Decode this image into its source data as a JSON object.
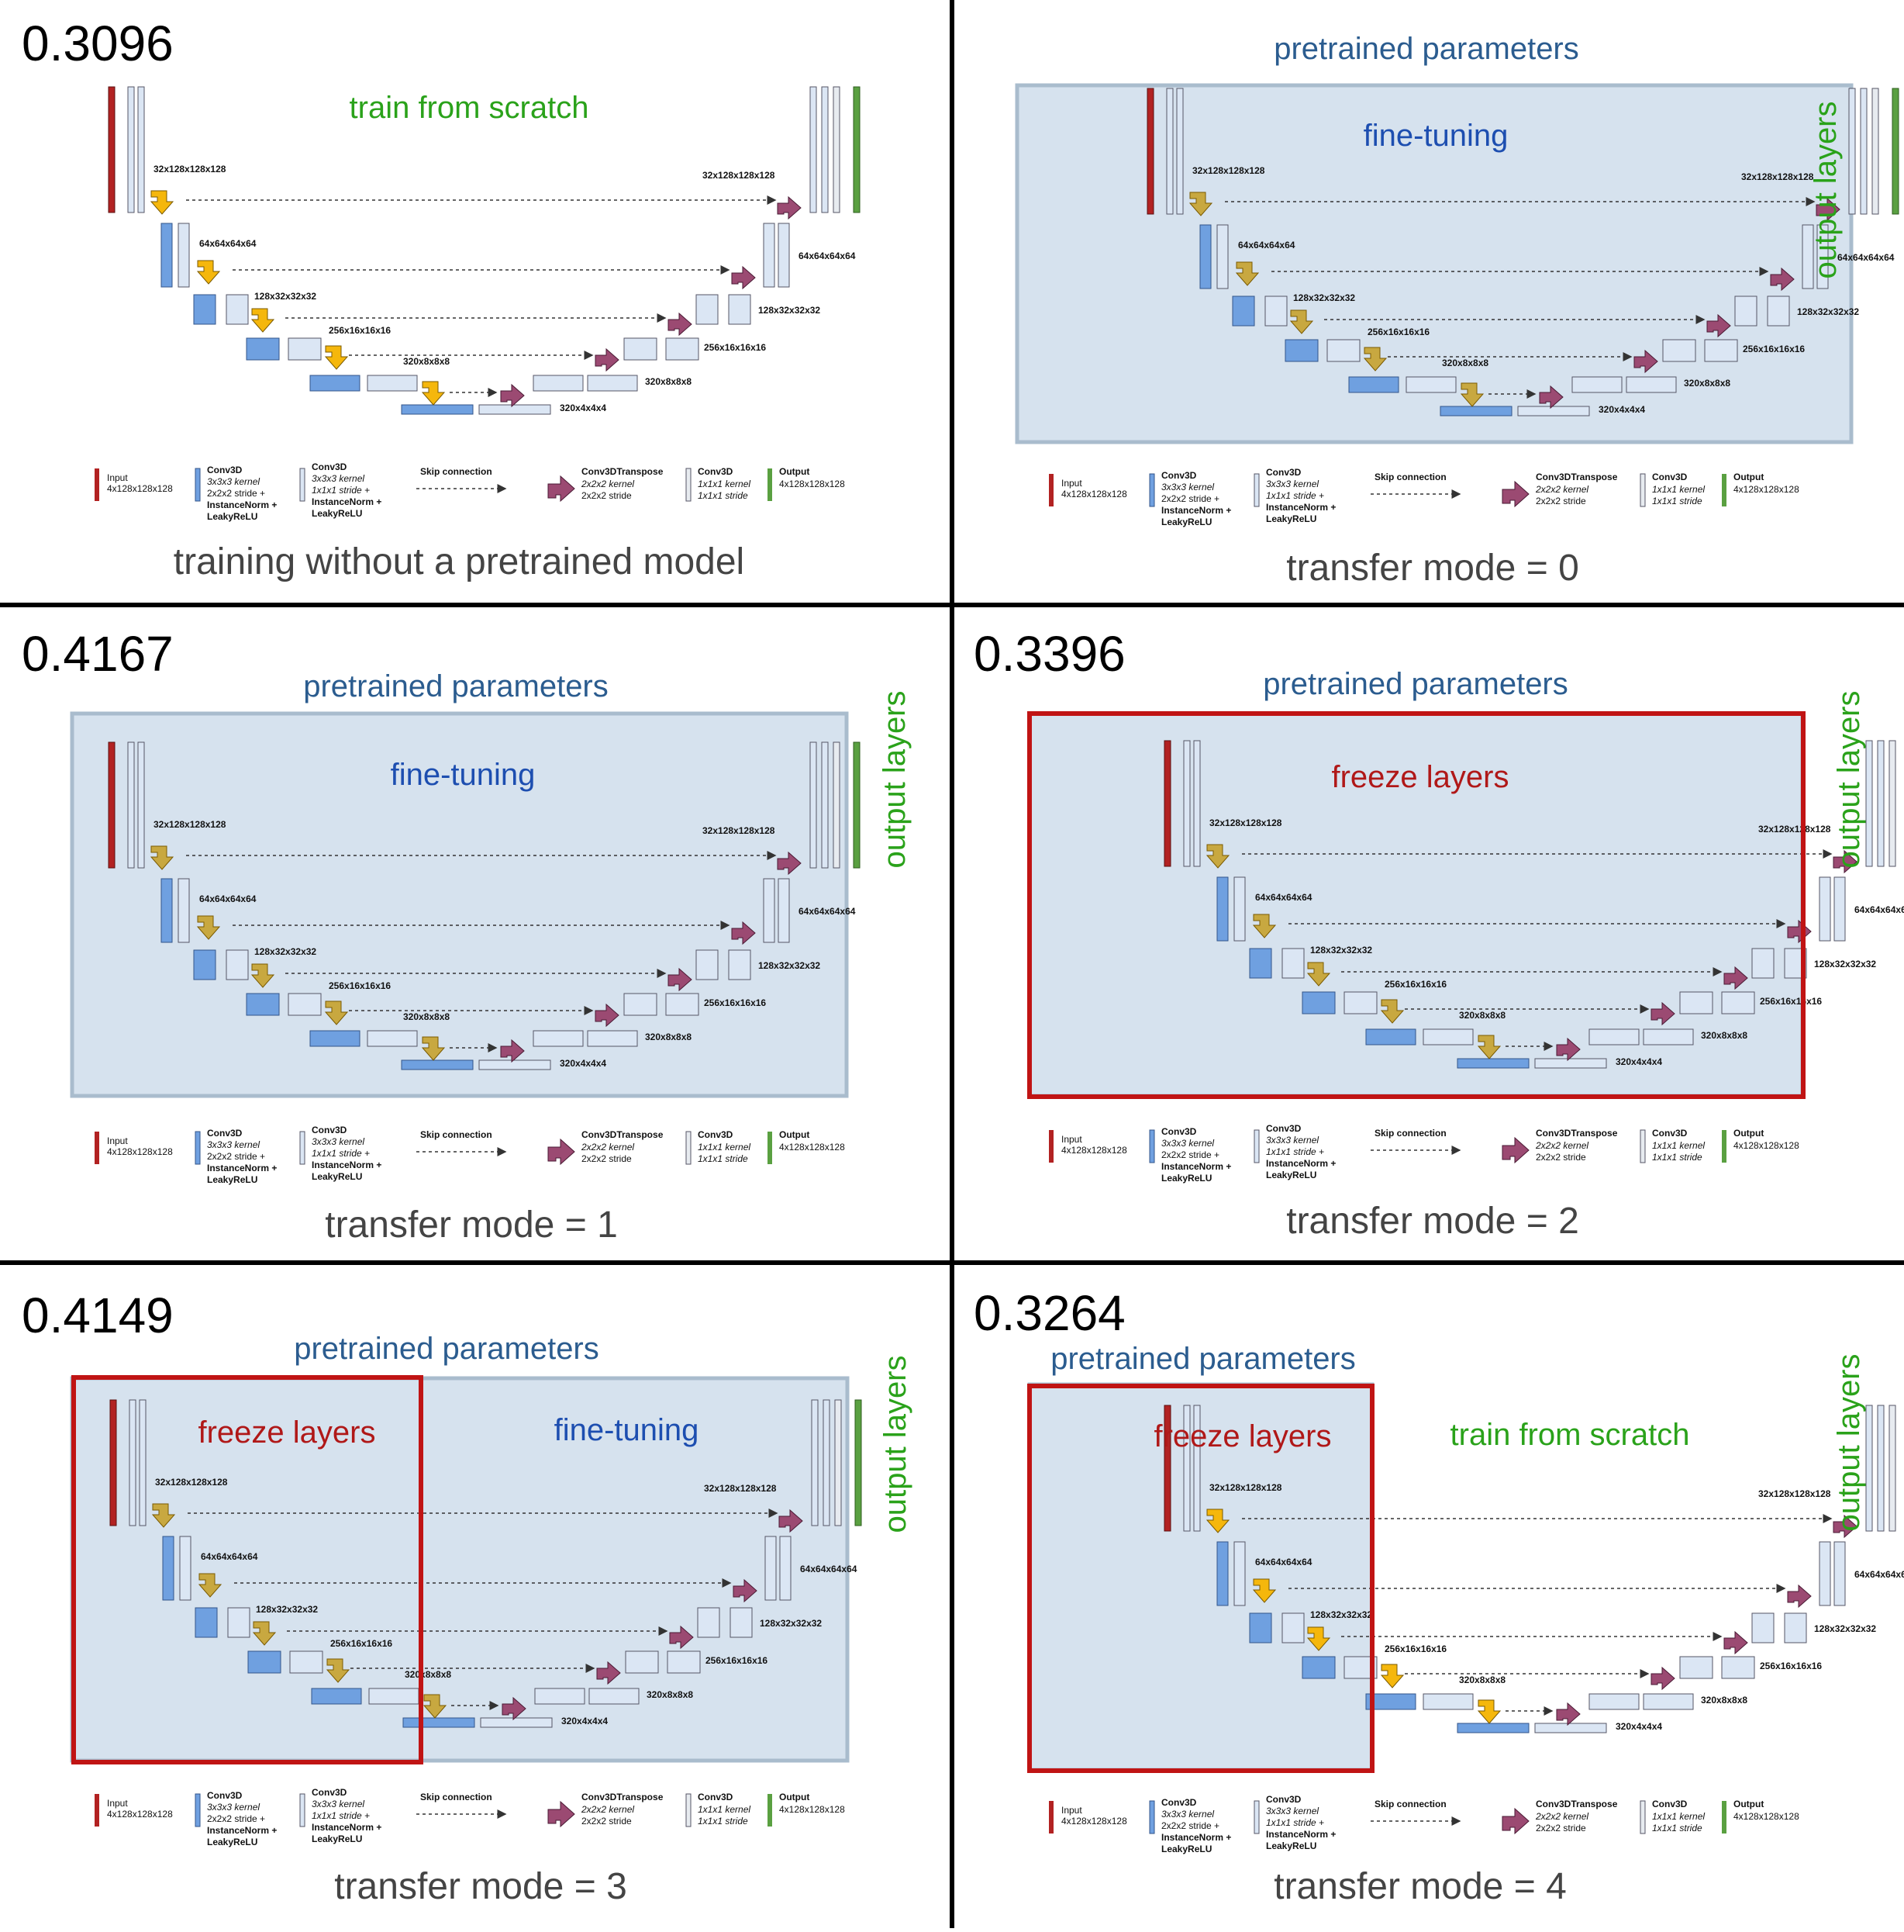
{
  "legend": {
    "input_title": "Input",
    "input_sub": "4x128x128x128",
    "conv_down_title": "Conv3D",
    "conv_down_lines": [
      "3x3x3 kernel",
      "2x2x2 stride +",
      "InstanceNorm +",
      "LeakyReLU"
    ],
    "conv_same_title": "Conv3D",
    "conv_same_lines": [
      "3x3x3 kernel",
      "1x1x1 stride +",
      "InstanceNorm +",
      "LeakyReLU"
    ],
    "skip_title": "Skip connection",
    "transpose_title": "Conv3DTranspose",
    "transpose_lines": [
      "2x2x2 kernel",
      "2x2x2 stride"
    ],
    "conv_out_title": "Conv3D",
    "conv_out_lines": [
      "1x1x1 kernel",
      "1x1x1 stride"
    ],
    "output_title": "Output",
    "output_sub": "4x128x128x128"
  },
  "dims": {
    "enc": [
      "32x128x128x128",
      "64x64x64x64",
      "128x32x32x32",
      "256x16x16x16",
      "320x8x8x8"
    ],
    "bottom": "320x4x4x4",
    "dec": [
      "32x128x128x128",
      "64x64x64x64",
      "128x32x32x32",
      "256x16x16x16",
      "320x8x8x8"
    ]
  },
  "panels": [
    {
      "score": "0.3096",
      "pretrained_label": "",
      "caption": "training without a pretrained model",
      "region_labels": [
        "train from scratch"
      ],
      "output_layers_label": ""
    },
    {
      "score": "",
      "pretrained_label": "pretrained parameters",
      "caption": "transfer mode = 0",
      "region_labels": [
        "fine-tuning"
      ],
      "output_layers_label": "output layers"
    },
    {
      "score": "0.4167",
      "pretrained_label": "pretrained parameters",
      "caption": "transfer mode = 1",
      "region_labels": [
        "fine-tuning"
      ],
      "output_layers_label": "output layers"
    },
    {
      "score": "0.3396",
      "pretrained_label": "pretrained parameters",
      "caption": "transfer mode = 2",
      "region_labels": [
        "freeze layers"
      ],
      "output_layers_label": "output layers"
    },
    {
      "score": "0.4149",
      "pretrained_label": "pretrained parameters",
      "caption": "transfer mode = 3",
      "region_labels": [
        "freeze layers",
        "fine-tuning"
      ],
      "output_layers_label": "output layers"
    },
    {
      "score": "0.3264",
      "pretrained_label": "pretrained parameters",
      "caption": "transfer mode = 4",
      "region_labels": [
        "freeze layers",
        "train from scratch"
      ],
      "output_layers_label": "output layers"
    }
  ],
  "colors": {
    "input": "#b22222",
    "conv_down": "#6fa0e0",
    "conv_same": "#dbe6f4",
    "conv_out": "#e7ebf0",
    "output": "#5aa041",
    "transpose": "#9b4a72",
    "skip_arrow_bright": "#f5b70c",
    "skip_arrow_muted": "#c8a840",
    "pretrained_fill": "#d6e2ee",
    "pretrained_border": "#a9bccd",
    "freeze_border": "#c01414",
    "text_fine_tuning": "#1d4eb0",
    "text_freeze": "#b01818",
    "text_scratch": "#2aa21a",
    "text_pretrained": "#2b5c8f",
    "text_output_layers": "#2aa21a",
    "text_caption": "#444444",
    "grid_line": "#000000"
  }
}
